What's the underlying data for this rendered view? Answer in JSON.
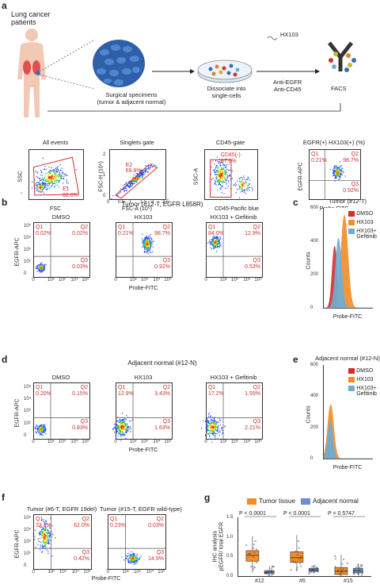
{
  "panel_a": {
    "letter": "a",
    "patients": "Lung cancer\npatients",
    "specimens": "Surgical specimens\n(tumor & adjacent normal)",
    "dissociate": "Dissociate into\nsingle-cells",
    "probe": "HX103",
    "antibodies": "Anti-EGFR\nAnti-CD45",
    "facs": "FACS",
    "gates": [
      {
        "title": "All events",
        "xlabel": "FSC",
        "ylabel": "SSC",
        "gate": "E1",
        "gate_pct": "82.6%"
      },
      {
        "title": "Singlets gate",
        "xlabel": "FSC-A (10⁵)",
        "ylabel": "FSC-H (10⁵)",
        "gate": "E2",
        "gate_pct": "69.8%"
      },
      {
        "title": "CD45-gate",
        "xlabel": "CD45-Pacific blue",
        "ylabel": "SSC-A",
        "gate": "CD45(-)",
        "gate_pct": "67.6%"
      },
      {
        "title": "EGFR(+) HX103(+) (%)",
        "xlabel": "Probe-FITC",
        "ylabel": "EGFR-APC",
        "q1": "Q1\n0.21%",
        "q2": "Q2\n98.7%",
        "q3": "Q3\n0.92%"
      }
    ],
    "singlet_xticks": [
      "0",
      "0.5",
      "1",
      "1.5",
      "2",
      "2.5"
    ],
    "singlet_yticks": [
      "0",
      "1",
      "2"
    ]
  },
  "panel_b": {
    "letter": "b",
    "title": "Tumor (#12-T, EGFR L858R)",
    "ylabel": "EGFR-APC",
    "xlabel": "Probe-FITC",
    "plots": [
      {
        "title": "DMSO",
        "q1": "Q1\n0.02%",
        "q2": "Q2\n0.02%",
        "q3": "Q3\n0.03%"
      },
      {
        "title": "HX103",
        "q1": "Q1\n0.21%",
        "q2": "Q2\n98.7%",
        "q3": "Q3\n0.92%"
      },
      {
        "title": "HX103 + Gefitinib",
        "q1": "Q1\n84.0%",
        "q2": "Q2\n12.9%",
        "q3": "Q3\n0.53%"
      }
    ]
  },
  "panel_c": {
    "letter": "c",
    "title": "Tumor (#12-T)",
    "ylabel": "Counts",
    "xlabel": "Probe-FITC",
    "yticks": [
      "600",
      "400",
      "200",
      "0"
    ],
    "legend": [
      {
        "label": "DMSO",
        "color": "#d32f2f"
      },
      {
        "label": "HX103",
        "color": "#f28c28"
      },
      {
        "label": "HX103+\nGefitinib",
        "color": "#6baed6"
      }
    ]
  },
  "panel_d": {
    "letter": "d",
    "title": "Adjacent normal (#12-N)",
    "ylabel": "EGFR-APC",
    "xlabel": "Probe-FITC",
    "plots": [
      {
        "title": "DMSO",
        "q1": "Q1\n0.20%",
        "q2": "Q2\n0.15%",
        "q3": "Q3\n0.83%"
      },
      {
        "title": "HX103",
        "q1": "Q1\n12.9%",
        "q2": "Q2\n3.43%",
        "q3": "Q3\n1.63%"
      },
      {
        "title": "HX103 + Gefitinib",
        "q1": "Q1\n17.2%",
        "q2": "Q2\n1.59%",
        "q3": "Q3\n2.21%"
      }
    ]
  },
  "panel_e": {
    "letter": "e",
    "title": "Adjacent normal (#12-N)",
    "ylabel": "Counts",
    "xlabel": "Probe-FITC",
    "yticks": [
      "600",
      "400",
      "200",
      "0"
    ],
    "legend": [
      {
        "label": "DMSO",
        "color": "#d32f2f"
      },
      {
        "label": "HX103",
        "color": "#f28c28"
      },
      {
        "label": "HX103+\nGefitinib",
        "color": "#6baed6"
      }
    ]
  },
  "panel_f": {
    "letter": "f",
    "ylabel": "EGFR-APC",
    "xlabel": "Probe-FITC",
    "plots": [
      {
        "title": "Tumor (#6-T, EGFR 19del)",
        "q1": "Q1\n32.3%",
        "q2": "Q2\n62.0%",
        "q3": "Q3\n0.42%"
      },
      {
        "title": "Tumor (#15-T, EGFR wild-type)",
        "q1": "Q1\n0.23%",
        "q2": "Q2\n0.03%",
        "q3": "Q3\n14.9%"
      }
    ]
  },
  "panel_g": {
    "letter": "g",
    "legend": [
      {
        "label": "Tumor tissue",
        "color": "#f28c28"
      },
      {
        "label": "Adjacent normal",
        "color": "#6a8fc9"
      }
    ],
    "ylabel": "IHC analysis\npEGFR/ total EGFR",
    "yticks": [
      "1.5",
      "1.0",
      "0.5",
      "0.0"
    ],
    "pvalues": [
      "P < 0.0001",
      "P < 0.0001",
      "P = 0.5747"
    ],
    "categories": [
      "#12",
      "#6",
      "#15"
    ]
  },
  "log_ticks": [
    "0",
    "10²",
    "10³",
    "10⁴",
    "10⁵"
  ],
  "log_yticks": [
    "10⁵",
    "10⁴",
    "10³",
    "10²",
    "0"
  ],
  "chart_data": [
    {
      "type": "box",
      "title": "",
      "ylabel": "IHC analysis pEGFR/ total EGFR",
      "categories": [
        "#12",
        "#6",
        "#15"
      ],
      "ylim": [
        0,
        1.5
      ],
      "series": [
        {
          "name": "Tumor tissue",
          "color": "#f28c28",
          "boxes": [
            {
              "q1": 0.38,
              "median": 0.53,
              "q3": 0.65,
              "min": 0.08,
              "max": 1.02
            },
            {
              "q1": 0.35,
              "median": 0.47,
              "q3": 0.62,
              "min": 0.12,
              "max": 1.05
            },
            {
              "q1": 0.04,
              "median": 0.12,
              "q3": 0.22,
              "min": 0.0,
              "max": 0.55
            }
          ]
        },
        {
          "name": "Adjacent normal",
          "color": "#6a8fc9",
          "boxes": [
            {
              "q1": 0.06,
              "median": 0.1,
              "q3": 0.14,
              "min": 0.0,
              "max": 0.25
            },
            {
              "q1": 0.12,
              "median": 0.16,
              "q3": 0.2,
              "min": 0.06,
              "max": 0.28
            },
            {
              "q1": 0.08,
              "median": 0.13,
              "q3": 0.2,
              "min": 0.02,
              "max": 0.32
            }
          ]
        }
      ],
      "annotations": [
        "P < 0.0001",
        "P < 0.0001",
        "P = 0.5747"
      ]
    }
  ]
}
